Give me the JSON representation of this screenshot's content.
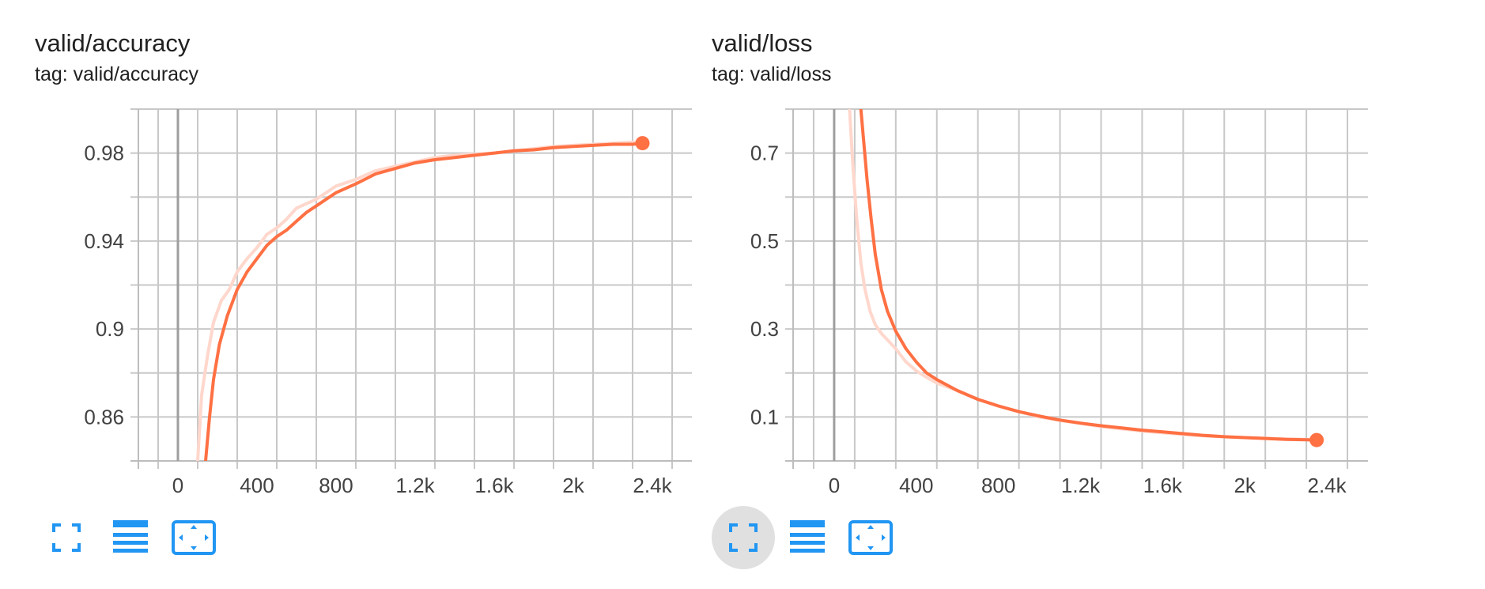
{
  "colors": {
    "line": "#ff7043",
    "raw_line": "#ffd7cc",
    "button": "#2196f3"
  },
  "cards": [
    {
      "id": "accuracy",
      "title": "valid/accuracy",
      "tag": "tag: valid/accuracy",
      "buttons": [
        "fullscreen-icon",
        "data-table-icon",
        "fit-domain-icon"
      ],
      "hovered_button": -1
    },
    {
      "id": "loss",
      "title": "valid/loss",
      "tag": "tag: valid/loss",
      "buttons": [
        "fullscreen-icon",
        "data-table-icon",
        "fit-domain-icon"
      ],
      "hovered_button": 0
    }
  ],
  "chart_data": [
    {
      "type": "line",
      "title": "valid/accuracy",
      "xlabel": "",
      "ylabel": "",
      "xlim": [
        -200,
        2600
      ],
      "ylim": [
        0.84,
        1.0
      ],
      "xticks": [
        0,
        400,
        800,
        1200,
        1600,
        2000,
        2400
      ],
      "xtick_labels": [
        "0",
        "400",
        "800",
        "1.2k",
        "1.6k",
        "2k",
        "2.4k"
      ],
      "yticks": [
        0.86,
        0.9,
        0.94,
        0.98
      ],
      "ytick_labels": [
        "0.86",
        "0.9",
        "0.94",
        "0.98"
      ],
      "grid": true,
      "series": [
        {
          "role": "raw",
          "x": [
            100,
            120,
            150,
            180,
            220,
            260,
            300,
            350,
            400,
            450,
            500,
            550,
            600,
            700,
            800,
            900,
            1000,
            1100,
            1200,
            1300,
            1400,
            1500,
            1600,
            1700,
            1800,
            1900,
            2000,
            2100,
            2200,
            2300,
            2350
          ],
          "y": [
            0.84,
            0.87,
            0.888,
            0.903,
            0.913,
            0.918,
            0.926,
            0.932,
            0.937,
            0.943,
            0.946,
            0.95,
            0.955,
            0.959,
            0.965,
            0.968,
            0.972,
            0.974,
            0.976,
            0.978,
            0.979,
            0.9795,
            0.98,
            0.981,
            0.982,
            0.983,
            0.9835,
            0.984,
            0.9845,
            0.985,
            0.985
          ]
        },
        {
          "role": "smoothed",
          "x": [
            140,
            160,
            180,
            210,
            250,
            300,
            350,
            400,
            450,
            500,
            550,
            600,
            650,
            700,
            800,
            900,
            1000,
            1100,
            1200,
            1300,
            1400,
            1500,
            1600,
            1700,
            1800,
            1900,
            2000,
            2100,
            2200,
            2300,
            2350
          ],
          "y": [
            0.84,
            0.86,
            0.877,
            0.893,
            0.906,
            0.918,
            0.926,
            0.932,
            0.938,
            0.942,
            0.945,
            0.949,
            0.953,
            0.956,
            0.962,
            0.966,
            0.9705,
            0.973,
            0.9755,
            0.977,
            0.978,
            0.979,
            0.98,
            0.981,
            0.9815,
            0.9825,
            0.983,
            0.9835,
            0.984,
            0.984,
            0.9845
          ]
        }
      ],
      "last_point": {
        "x": 2350,
        "y": 0.9845
      }
    },
    {
      "type": "line",
      "title": "valid/loss",
      "xlabel": "",
      "ylabel": "",
      "xlim": [
        -200,
        2600
      ],
      "ylim": [
        0,
        0.8
      ],
      "xticks": [
        0,
        400,
        800,
        1200,
        1600,
        2000,
        2400
      ],
      "xtick_labels": [
        "0",
        "400",
        "800",
        "1.2k",
        "1.6k",
        "2k",
        "2.4k"
      ],
      "yticks": [
        0.1,
        0.3,
        0.5,
        0.7
      ],
      "ytick_labels": [
        "0.1",
        "0.3",
        "0.5",
        "0.7"
      ],
      "grid": true,
      "series": [
        {
          "role": "raw",
          "x": [
            75,
            90,
            110,
            130,
            150,
            175,
            200,
            230,
            260,
            300,
            350,
            400,
            450,
            500,
            600,
            700,
            800,
            900,
            1000,
            1100,
            1200,
            1300,
            1400,
            1500,
            1600,
            1700,
            1800,
            1900,
            2000,
            2100,
            2200,
            2300,
            2350
          ],
          "y": [
            0.8,
            0.68,
            0.55,
            0.45,
            0.39,
            0.34,
            0.31,
            0.29,
            0.275,
            0.255,
            0.225,
            0.205,
            0.19,
            0.177,
            0.16,
            0.14,
            0.125,
            0.112,
            0.1,
            0.092,
            0.085,
            0.078,
            0.073,
            0.068,
            0.064,
            0.06,
            0.057,
            0.055,
            0.053,
            0.052,
            0.05,
            0.049,
            0.049
          ]
        },
        {
          "role": "smoothed",
          "x": [
            130,
            145,
            160,
            180,
            200,
            230,
            260,
            300,
            350,
            400,
            450,
            500,
            600,
            700,
            800,
            900,
            1000,
            1100,
            1200,
            1300,
            1400,
            1500,
            1600,
            1700,
            1800,
            1900,
            2000,
            2100,
            2200,
            2300,
            2350
          ],
          "y": [
            0.8,
            0.72,
            0.64,
            0.55,
            0.47,
            0.39,
            0.34,
            0.295,
            0.255,
            0.225,
            0.2,
            0.185,
            0.16,
            0.14,
            0.125,
            0.112,
            0.102,
            0.093,
            0.086,
            0.08,
            0.075,
            0.07,
            0.066,
            0.062,
            0.058,
            0.055,
            0.053,
            0.051,
            0.049,
            0.048,
            0.0475
          ]
        }
      ],
      "last_point": {
        "x": 2350,
        "y": 0.0475
      }
    }
  ]
}
